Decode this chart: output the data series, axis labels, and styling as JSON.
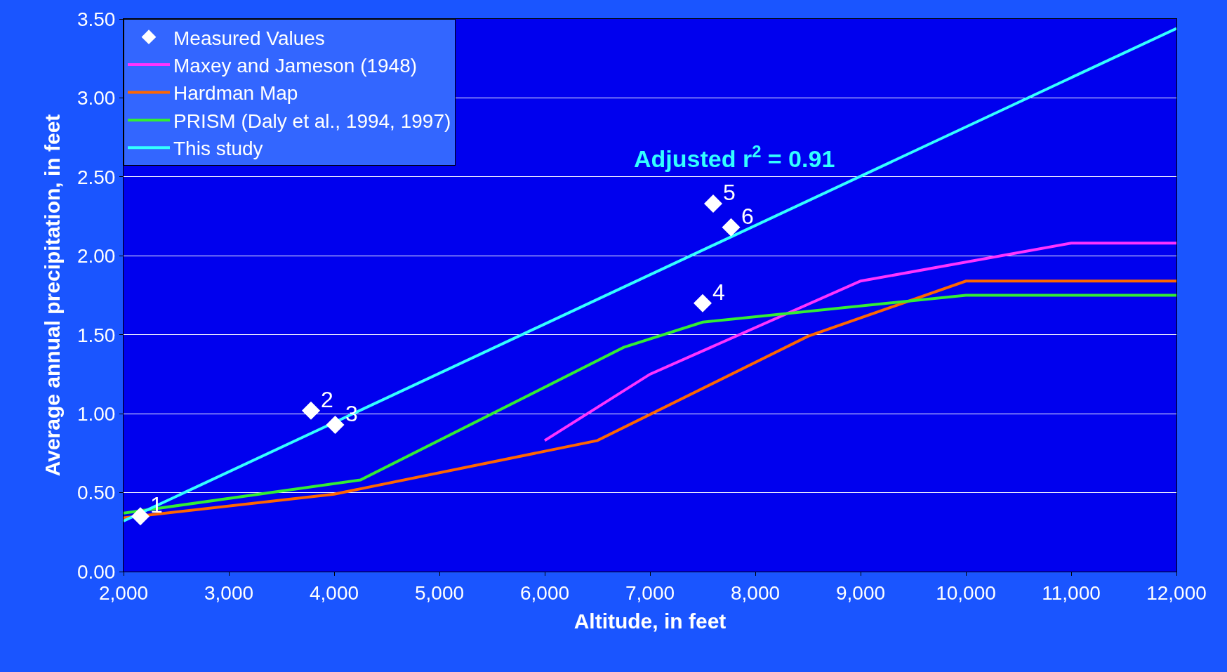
{
  "chart_data": {
    "type": "line",
    "xlabel": "Altitude, in feet",
    "ylabel": "Average annual precipitation, in feet",
    "xlim": [
      2000,
      12000
    ],
    "xticks": [
      {
        "value": 2000,
        "label": "2,000"
      },
      {
        "value": 3000,
        "label": "3,000"
      },
      {
        "value": 4000,
        "label": "4,000"
      },
      {
        "value": 5000,
        "label": "5,000"
      },
      {
        "value": 6000,
        "label": "6,000"
      },
      {
        "value": 7000,
        "label": "7,000"
      },
      {
        "value": 8000,
        "label": "8,000"
      },
      {
        "value": 9000,
        "label": "9,000"
      },
      {
        "value": 10000,
        "label": "10,000"
      },
      {
        "value": 11000,
        "label": "11,000"
      },
      {
        "value": 12000,
        "label": "12,000"
      }
    ],
    "ylim": [
      0,
      3.5
    ],
    "yticks": [
      {
        "value": 0,
        "label": "0.00"
      },
      {
        "value": 0.5,
        "label": "0.50"
      },
      {
        "value": 1,
        "label": "1.00"
      },
      {
        "value": 1.5,
        "label": "1.50"
      },
      {
        "value": 2,
        "label": "2.00"
      },
      {
        "value": 2.5,
        "label": "2.50"
      },
      {
        "value": 3,
        "label": "3.00"
      },
      {
        "value": 3.5,
        "label": "3.50"
      }
    ],
    "grid": "y",
    "legend": "top left",
    "line_style": "solid",
    "series": [
      {
        "name": "Measured Values",
        "type": "scatter",
        "marker": "diamond",
        "color": "#ffffff",
        "x": [
          2160,
          3780,
          4010,
          7500,
          7600,
          7770
        ],
        "values": [
          0.35,
          1.02,
          0.93,
          1.7,
          2.33,
          2.18
        ]
      },
      {
        "name": "Maxey and Jameson (1948)",
        "color": "#ff33ff",
        "x": [
          6000,
          7000,
          9000,
          10000,
          11000,
          12000
        ],
        "values": [
          0.83,
          1.25,
          1.84,
          1.96,
          2.08,
          2.08
        ]
      },
      {
        "name": "Hardman Map",
        "color": "#ff6600",
        "x": [
          2000,
          4000,
          6500,
          8500,
          10000,
          12000
        ],
        "values": [
          0.34,
          0.49,
          0.83,
          1.49,
          1.84,
          1.84
        ]
      },
      {
        "name": "PRISM (Daly et al., 1994, 1997)",
        "color": "#33ee33",
        "x": [
          2000,
          4250,
          6750,
          7500,
          10000,
          12000
        ],
        "values": [
          0.37,
          0.58,
          1.42,
          1.58,
          1.75,
          1.75
        ]
      },
      {
        "name": "This study",
        "color": "#33ffff",
        "x": [
          2000,
          12000
        ],
        "values": [
          0.32,
          3.44
        ]
      }
    ],
    "annotations": [
      "Adjusted r$^{2}$ = 0.91",
      {
        "text": "1",
        "x": 2160,
        "y": 0.35
      },
      {
        "text": "2",
        "x": 3780,
        "y": 1.02
      },
      {
        "text": "3",
        "x": 4010,
        "y": 0.93
      },
      {
        "text": "4",
        "x": 7500,
        "y": 1.7
      },
      {
        "text": "5",
        "x": 7600,
        "y": 2.33
      },
      {
        "text": "6",
        "x": 7770,
        "y": 2.18
      }
    ]
  }
}
